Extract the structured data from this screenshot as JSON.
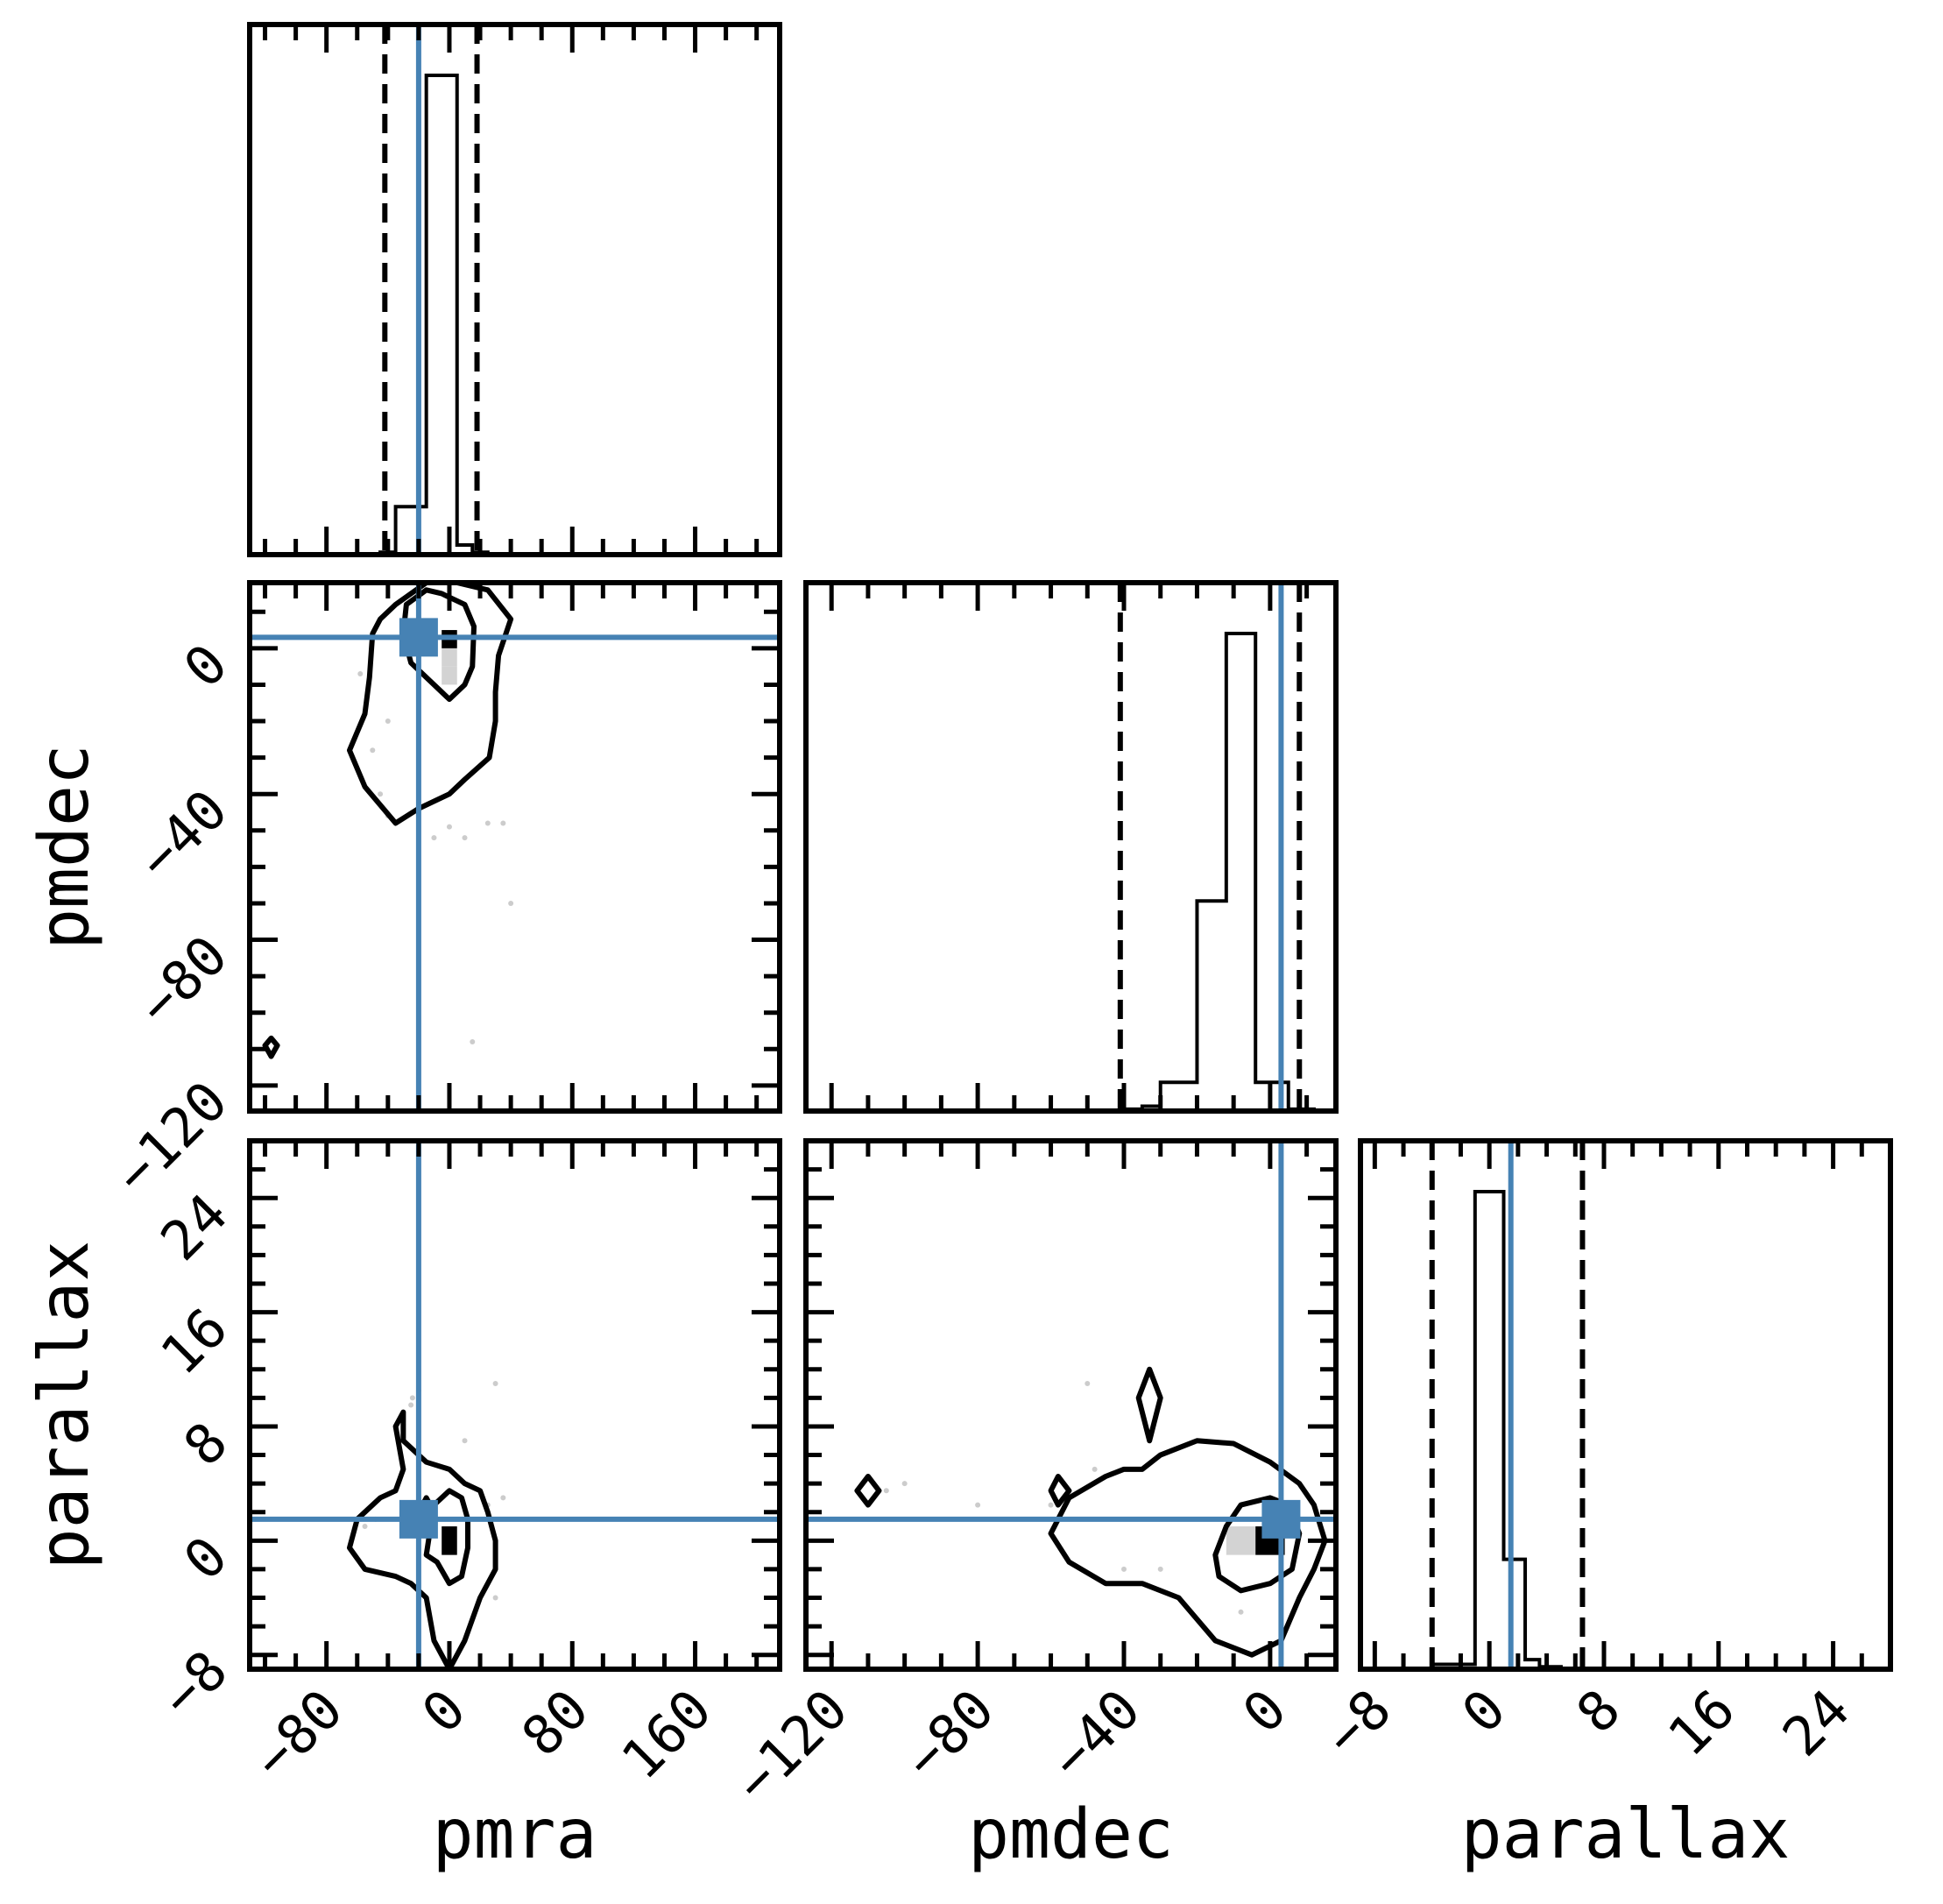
{
  "colors": {
    "truth": "#4682b4",
    "contour": "#000000",
    "hist": "#000000",
    "density_light": "#d3d3d3",
    "density_dark": "#000000",
    "scatter": "#cccccc"
  },
  "chart_data": {
    "type": "corner",
    "title": "",
    "parameters": [
      "pmra",
      "pmdec",
      "parallax"
    ],
    "truths": {
      "pmra": -20,
      "pmdec": 3,
      "parallax": 1.5
    },
    "ranges": {
      "pmra": [
        -130,
        215
      ],
      "pmdec": [
        -127,
        18
      ],
      "parallax": [
        -9,
        28
      ]
    },
    "ticks": {
      "pmra": [
        -80,
        0,
        80,
        160
      ],
      "pmdec": [
        -120,
        -80,
        -40,
        0
      ],
      "parallax": [
        -8,
        0,
        8,
        16,
        24
      ]
    },
    "axis_labels": {
      "x": [
        "pmra",
        "pmdec",
        "parallax"
      ],
      "y": [
        "",
        "pmdec",
        "parallax"
      ]
    },
    "quantile_lines": {
      "pmra": [
        -42,
        18
      ],
      "pmdec": [
        -41,
        8
      ],
      "parallax": [
        -4,
        6.5
      ]
    },
    "histograms": {
      "pmra": {
        "edges": [
          -45,
          -35,
          -25,
          -15,
          -5,
          5,
          15,
          25
        ],
        "counts": [
          0.005,
          0.1,
          0.1,
          1.0,
          1.0,
          0.02,
          0.005
        ]
      },
      "pmdec": {
        "edges": [
          -41,
          -35,
          -30,
          -20,
          -12,
          -4,
          5,
          12
        ],
        "counts": [
          0.004,
          0.01,
          0.06,
          0.44,
          1.0,
          0.06,
          0.004
        ]
      },
      "parallax": {
        "edges": [
          -4,
          -1,
          1,
          2.5,
          3.5,
          5
        ],
        "counts": [
          0.01,
          1.0,
          0.23,
          0.02,
          0.005
        ]
      }
    },
    "contours": {
      "pmdec_vs_pmra": [
        [
          [
            -30,
            4
          ],
          [
            -28,
            12
          ],
          [
            -15,
            16
          ],
          [
            -5,
            15
          ],
          [
            10,
            12
          ],
          [
            16,
            6
          ],
          [
            15,
            -5
          ],
          [
            10,
            -10
          ],
          [
            0,
            -14
          ],
          [
            -10,
            -10
          ],
          [
            -25,
            -4
          ],
          [
            -30,
            4
          ]
        ],
        [
          [
            -50,
            4
          ],
          [
            -45,
            8
          ],
          [
            -35,
            12
          ],
          [
            -15,
            18
          ],
          [
            5,
            18
          ],
          [
            25,
            16
          ],
          [
            40,
            8
          ],
          [
            32,
            -2
          ],
          [
            30,
            -12
          ],
          [
            30,
            -20
          ],
          [
            26,
            -30
          ],
          [
            10,
            -36
          ],
          [
            0,
            -40
          ],
          [
            -20,
            -44
          ],
          [
            -35,
            -48
          ],
          [
            -55,
            -38
          ],
          [
            -65,
            -28
          ],
          [
            -55,
            -18
          ],
          [
            -52,
            -8
          ],
          [
            -50,
            4
          ]
        ],
        [
          [
            -120,
            -109
          ],
          [
            -116,
            -107
          ],
          [
            -112,
            -109
          ],
          [
            -116,
            -112
          ],
          [
            -120,
            -109
          ]
        ]
      ],
      "parallax_vs_pmra": [
        [
          [
            -15,
            -1
          ],
          [
            -10,
            2.5
          ],
          [
            0,
            3.5
          ],
          [
            8,
            3
          ],
          [
            12,
            1.5
          ],
          [
            12,
            -0.5
          ],
          [
            8,
            -2.5
          ],
          [
            0,
            -3
          ],
          [
            -8,
            -1.5
          ],
          [
            -15,
            -1
          ]
        ],
        [
          [
            -30,
            7
          ],
          [
            -15,
            5.5
          ],
          [
            0,
            5
          ],
          [
            10,
            4
          ],
          [
            20,
            3.5
          ],
          [
            25,
            2
          ],
          [
            30,
            0
          ],
          [
            30,
            -2
          ],
          [
            20,
            -4
          ],
          [
            10,
            -7
          ],
          [
            0,
            -9
          ],
          [
            -10,
            -7
          ],
          [
            -15,
            -4
          ],
          [
            -25,
            -3
          ],
          [
            -35,
            -2.5
          ],
          [
            -55,
            -2
          ],
          [
            -65,
            -0.5
          ],
          [
            -60,
            1.5
          ],
          [
            -45,
            3
          ],
          [
            -35,
            3.5
          ],
          [
            -30,
            5
          ],
          [
            -35,
            8
          ],
          [
            -30,
            9
          ],
          [
            -30,
            7
          ]
        ],
        [
          [
            -20,
            2
          ],
          [
            -15,
            3
          ],
          [
            -10,
            2
          ],
          [
            -15,
            1
          ],
          [
            -20,
            2
          ]
        ]
      ],
      "parallax_vs_pmdec": [
        [
          [
            -15,
            -1
          ],
          [
            -12,
            1
          ],
          [
            -8,
            2.5
          ],
          [
            0,
            3
          ],
          [
            5,
            2.5
          ],
          [
            8,
            0.5
          ],
          [
            6,
            -2
          ],
          [
            0,
            -3
          ],
          [
            -8,
            -3.5
          ],
          [
            -14,
            -2.5
          ],
          [
            -15,
            -1
          ]
        ],
        [
          [
            -60,
            0.5
          ],
          [
            -55,
            3
          ],
          [
            -45,
            4.5
          ],
          [
            -40,
            5
          ],
          [
            -35,
            5
          ],
          [
            -30,
            6
          ],
          [
            -20,
            7
          ],
          [
            -10,
            6.8
          ],
          [
            0,
            5.5
          ],
          [
            8,
            4
          ],
          [
            12,
            2.5
          ],
          [
            15,
            0
          ],
          [
            12,
            -2
          ],
          [
            8,
            -4
          ],
          [
            3,
            -7
          ],
          [
            -5,
            -8
          ],
          [
            -15,
            -7
          ],
          [
            -25,
            -4
          ],
          [
            -35,
            -3
          ],
          [
            -45,
            -3
          ],
          [
            -55,
            -1.5
          ],
          [
            -60,
            0.5
          ]
        ],
        [
          [
            -36,
            10
          ],
          [
            -33,
            12
          ],
          [
            -30,
            10
          ],
          [
            -33,
            7
          ],
          [
            -36,
            10
          ]
        ],
        [
          [
            -60,
            3.5
          ],
          [
            -58,
            4.5
          ],
          [
            -55,
            3.5
          ],
          [
            -58,
            2.5
          ],
          [
            -60,
            3.5
          ]
        ],
        [
          [
            -113,
            3.5
          ],
          [
            -110,
            4.5
          ],
          [
            -107,
            3.5
          ],
          [
            -110,
            2.5
          ],
          [
            -113,
            3.5
          ]
        ]
      ]
    },
    "density_cells": {
      "pmdec_vs_pmra": [
        {
          "x": [
            -5,
            5
          ],
          "y": [
            -10,
            -5
          ],
          "level": "light"
        },
        {
          "x": [
            -5,
            5
          ],
          "y": [
            -5,
            0
          ],
          "level": "light"
        },
        {
          "x": [
            -5,
            5
          ],
          "y": [
            0,
            5
          ],
          "level": "dark"
        }
      ],
      "parallax_vs_pmra": [
        {
          "x": [
            -5,
            5
          ],
          "y": [
            -1,
            1
          ],
          "level": "dark"
        }
      ],
      "parallax_vs_pmdec": [
        {
          "x": [
            -12,
            -4
          ],
          "y": [
            -1,
            1
          ],
          "level": "light"
        },
        {
          "x": [
            -4,
            4
          ],
          "y": [
            -1,
            1
          ],
          "level": "dark"
        }
      ]
    },
    "scatter_points": {
      "pmdec_vs_pmra": [
        [
          -58,
          -7
        ],
        [
          -50,
          -28
        ],
        [
          -45,
          -40
        ],
        [
          -40,
          -46
        ],
        [
          -10,
          -52
        ],
        [
          0,
          -49
        ],
        [
          10,
          -52
        ],
        [
          25,
          -48
        ],
        [
          35,
          -48
        ],
        [
          40,
          -70
        ],
        [
          15,
          -108
        ],
        [
          -40,
          -20
        ]
      ],
      "parallax_vs_pmra": [
        [
          -55,
          1
        ],
        [
          -48,
          1.5
        ],
        [
          -25,
          9.5
        ],
        [
          -24,
          10
        ],
        [
          -20,
          10.5
        ],
        [
          10,
          7
        ],
        [
          25,
          2.5
        ],
        [
          30,
          11
        ],
        [
          35,
          3
        ],
        [
          30,
          -4
        ]
      ],
      "parallax_vs_pmdec": [
        [
          -50,
          11
        ],
        [
          -48,
          5
        ],
        [
          -80,
          2.5
        ],
        [
          -60,
          2.5
        ],
        [
          -40,
          -2
        ],
        [
          -30,
          -2
        ],
        [
          -8,
          -5
        ],
        [
          -25,
          -4
        ],
        [
          -100,
          4
        ],
        [
          -105,
          3.5
        ]
      ]
    }
  }
}
